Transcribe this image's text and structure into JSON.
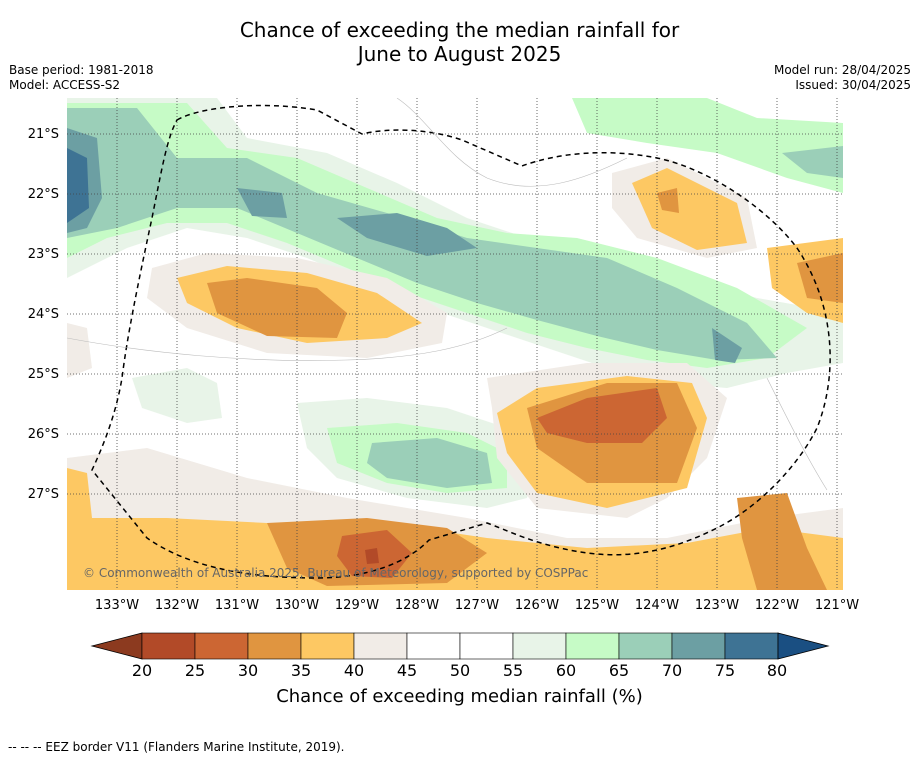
{
  "title_line1": "Chance of exceeding the median rainfall for",
  "title_line2": "June to August 2025",
  "base_period": "Base period: 1981-2018",
  "model": "Model: ACCESS-S2",
  "model_run": "Model run: 28/04/2025",
  "issued": "Issued: 30/04/2025",
  "lat_ticks": [
    "21°S",
    "22°S",
    "23°S",
    "24°S",
    "25°S",
    "26°S",
    "27°S"
  ],
  "lon_ticks": [
    "133°W",
    "132°W",
    "131°W",
    "130°W",
    "129°W",
    "128°W",
    "127°W",
    "126°W",
    "125°W",
    "124°W",
    "123°W",
    "122°W",
    "121°W"
  ],
  "copyright": "© Commonwealth of Australia 2025, Bureau of Meteorology, supported by COSPPac",
  "colorbar": {
    "ticks": [
      "20",
      "25",
      "30",
      "35",
      "40",
      "45",
      "50",
      "55",
      "60",
      "65",
      "70",
      "75",
      "80"
    ],
    "label": "Chance of exceeding median rainfall (%)",
    "colors": [
      "#8c3a1f",
      "#b24a28",
      "#cc6633",
      "#e09540",
      "#fdc863",
      "#f1ece7",
      "#ffffff",
      "#ffffff",
      "#e8f4e8",
      "#c6fbc6",
      "#9bcfb8",
      "#6c9fa3",
      "#3e7394",
      "#1a4f82"
    ]
  },
  "footnote": "--  --  -- EEZ border V11 (Flanders Marine Institute, 2019)."
}
